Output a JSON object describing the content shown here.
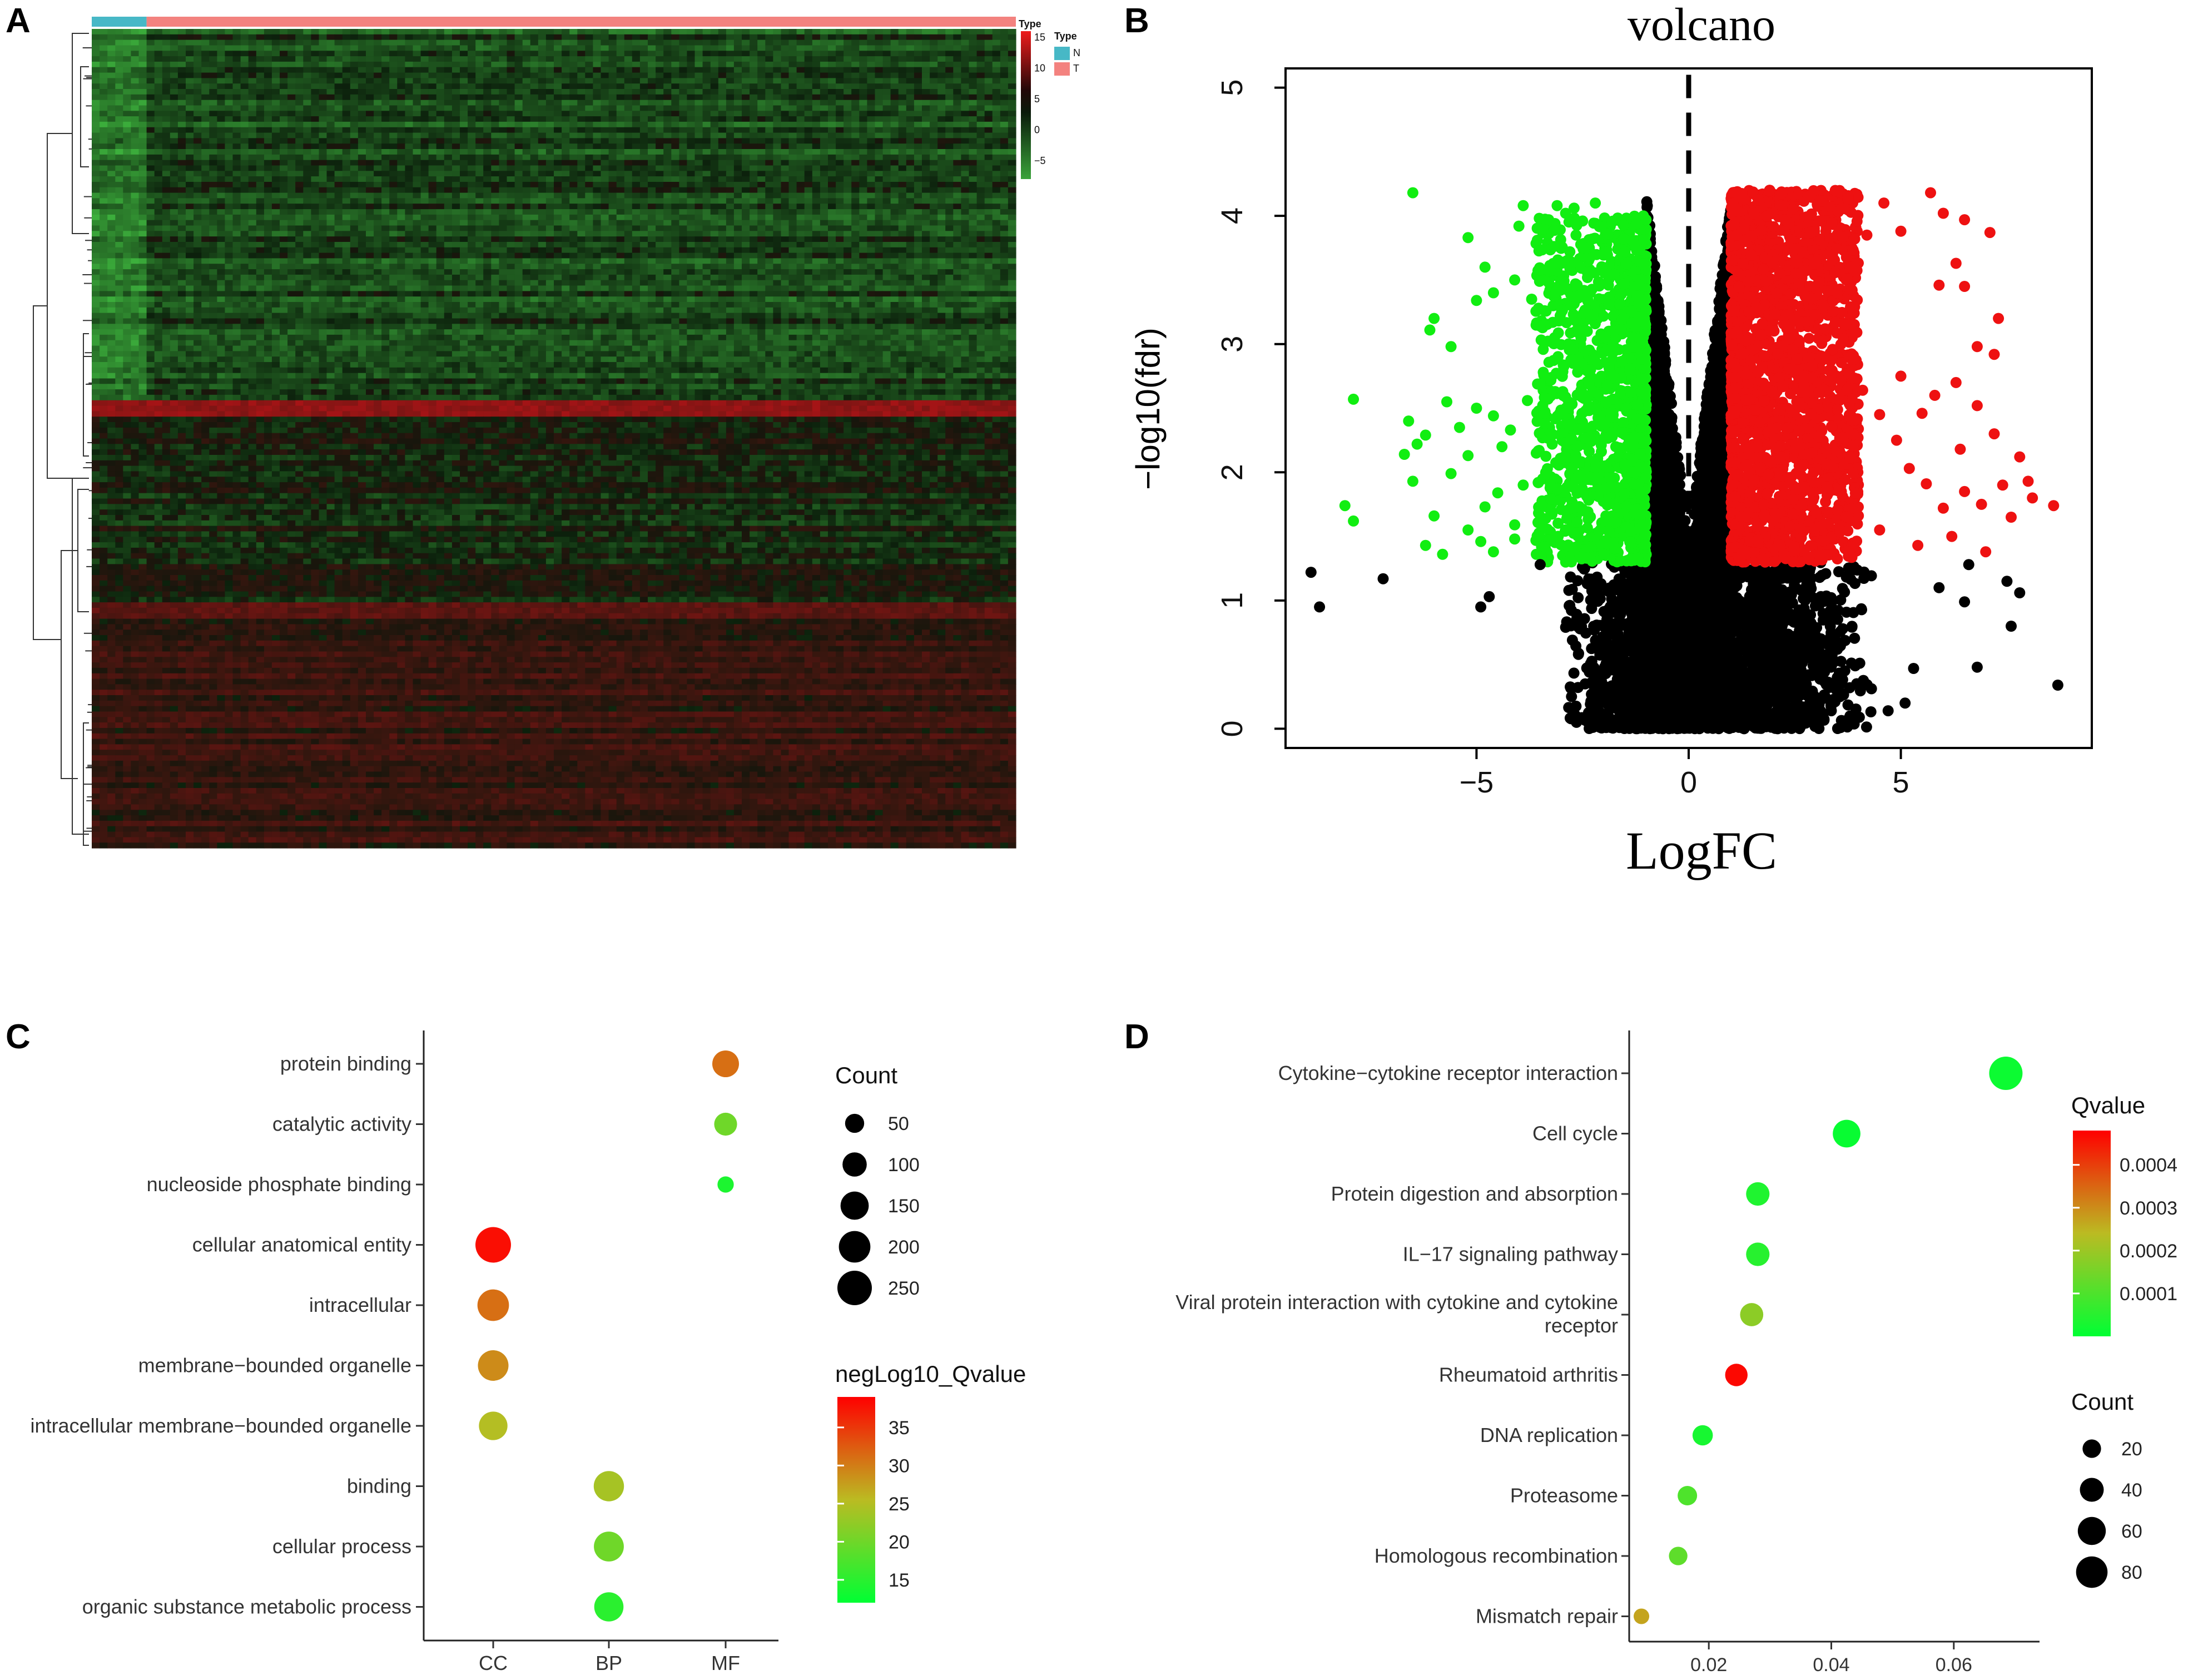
{
  "panels": {
    "a": "A",
    "b": "B",
    "c": "C",
    "d": "D"
  },
  "colors": {
    "up": "#ee1111",
    "down": "#11ee11",
    "nonsig": "#000000",
    "type_n": "#47b8c6",
    "type_t": "#f3827f",
    "low": "#00ff33",
    "high": "#ff0000"
  },
  "chart_data": [
    {
      "id": "heatmap",
      "type": "heatmap",
      "title": "",
      "annotation_title": "Type",
      "groups": [
        {
          "label": "N",
          "samples": 14
        },
        {
          "label": "T",
          "samples": 222
        }
      ],
      "color_legend": {
        "title": "Type",
        "ticks": [
          "15",
          "10",
          "5",
          "0",
          "−5"
        ],
        "range": [
          -8,
          16
        ]
      }
    },
    {
      "id": "volcano",
      "type": "scatter",
      "title": "volcano",
      "xlabel": "LogFC",
      "ylabel": "−log10(fdr)",
      "xlim": [
        -9.5,
        9.5
      ],
      "ylim": [
        -0.15,
        5.15
      ],
      "xticks": [
        "−5",
        "0",
        "5"
      ],
      "yticks": [
        "0",
        "1",
        "2",
        "3",
        "4",
        "5"
      ],
      "fc_cutoff": 1,
      "fdr_line_y": 1.3,
      "cutoff_line_x": 0,
      "series": [
        {
          "name": "down",
          "color": "#11ee11",
          "points": [
            [
              -6.5,
              4.18
            ],
            [
              -5.2,
              3.83
            ],
            [
              -4.8,
              3.6
            ],
            [
              -4.0,
              3.92
            ],
            [
              -3.9,
              4.08
            ],
            [
              -3.3,
              3.97
            ],
            [
              -3.1,
              4.08
            ],
            [
              -2.9,
              4.02
            ],
            [
              -2.7,
              4.06
            ],
            [
              -2.5,
              3.96
            ],
            [
              -2.2,
              4.1
            ],
            [
              -1.9,
              3.86
            ],
            [
              -1.5,
              3.72
            ],
            [
              -6.0,
              3.2
            ],
            [
              -6.1,
              3.11
            ],
            [
              -5.6,
              2.98
            ],
            [
              -5.0,
              3.34
            ],
            [
              -4.6,
              3.4
            ],
            [
              -4.1,
              3.5
            ],
            [
              -3.7,
              3.35
            ],
            [
              -3.5,
              3.14
            ],
            [
              -3.3,
              3.48
            ],
            [
              -3.0,
              3.63
            ],
            [
              -2.8,
              3.72
            ],
            [
              -7.9,
              2.57
            ],
            [
              -6.6,
              2.4
            ],
            [
              -6.2,
              2.29
            ],
            [
              -6.4,
              2.22
            ],
            [
              -6.7,
              2.14
            ],
            [
              -5.7,
              2.55
            ],
            [
              -5.4,
              2.35
            ],
            [
              -5.2,
              2.13
            ],
            [
              -5.0,
              2.5
            ],
            [
              -4.6,
              2.44
            ],
            [
              -4.4,
              2.2
            ],
            [
              -4.2,
              2.33
            ],
            [
              -3.8,
              2.56
            ],
            [
              -3.5,
              2.69
            ],
            [
              -8.1,
              1.74
            ],
            [
              -7.9,
              1.62
            ],
            [
              -6.5,
              1.93
            ],
            [
              -6.0,
              1.66
            ],
            [
              -5.6,
              1.99
            ],
            [
              -5.2,
              1.55
            ],
            [
              -4.8,
              1.73
            ],
            [
              -4.5,
              1.84
            ],
            [
              -4.1,
              1.59
            ],
            [
              -3.9,
              1.9
            ],
            [
              -6.2,
              1.43
            ],
            [
              -5.8,
              1.36
            ],
            [
              -4.9,
              1.46
            ],
            [
              -4.6,
              1.38
            ],
            [
              -4.1,
              1.48
            ],
            [
              -3.4,
              1.42
            ],
            [
              -2.9,
              1.3
            ],
            [
              -2.4,
              1.33
            ],
            [
              -2.0,
              1.36
            ],
            [
              -1.6,
              1.31
            ],
            [
              -1.2,
              1.33
            ]
          ],
          "cloud": {
            "x": [
              -3.6,
              -1.0
            ],
            "y": [
              1.3,
              4.0
            ],
            "n": 1200
          }
        },
        {
          "name": "up",
          "color": "#ee1111",
          "points": [
            [
              5.7,
              4.18
            ],
            [
              6.5,
              3.97
            ],
            [
              7.1,
              3.87
            ],
            [
              6.0,
              4.02
            ],
            [
              5.0,
              3.88
            ],
            [
              4.6,
              4.1
            ],
            [
              6.3,
              3.63
            ],
            [
              5.9,
              3.46
            ],
            [
              6.5,
              3.45
            ],
            [
              7.3,
              3.2
            ],
            [
              6.8,
              2.98
            ],
            [
              7.2,
              2.92
            ],
            [
              6.3,
              2.7
            ],
            [
              5.8,
              2.6
            ],
            [
              6.8,
              2.52
            ],
            [
              7.2,
              2.3
            ],
            [
              7.8,
              2.12
            ],
            [
              7.4,
              1.9
            ],
            [
              6.9,
              1.75
            ],
            [
              6.5,
              1.85
            ],
            [
              8.6,
              1.74
            ],
            [
              8.1,
              1.8
            ],
            [
              8.0,
              1.93
            ],
            [
              7.6,
              1.65
            ],
            [
              6.0,
              1.72
            ],
            [
              5.6,
              1.91
            ],
            [
              5.2,
              2.03
            ],
            [
              4.9,
              2.25
            ],
            [
              4.5,
              2.45
            ],
            [
              4.1,
              2.64
            ],
            [
              3.9,
              2.88
            ],
            [
              3.7,
              3.15
            ],
            [
              3.5,
              3.4
            ],
            [
              3.8,
              3.6
            ],
            [
              4.2,
              3.85
            ],
            [
              4.5,
              1.55
            ],
            [
              5.4,
              1.43
            ],
            [
              6.2,
              1.5
            ],
            [
              7.0,
              1.38
            ],
            [
              5.5,
              2.46
            ],
            [
              6.4,
              2.18
            ],
            [
              5.0,
              2.75
            ]
          ],
          "cloud": {
            "x": [
              1.0,
              4.0
            ],
            "y": [
              1.3,
              4.2
            ],
            "n": 2200
          }
        },
        {
          "name": "nonsig",
          "color": "#000000",
          "points": [
            [
              -8.9,
              1.22
            ],
            [
              -8.7,
              0.95
            ],
            [
              -7.2,
              1.17
            ],
            [
              -4.9,
              0.95
            ],
            [
              -4.7,
              1.03
            ],
            [
              -3.5,
              1.28
            ],
            [
              8.7,
              0.34
            ],
            [
              7.6,
              0.8
            ],
            [
              7.8,
              1.06
            ],
            [
              6.8,
              0.48
            ],
            [
              6.5,
              0.99
            ],
            [
              5.9,
              1.1
            ],
            [
              5.3,
              0.47
            ],
            [
              5.1,
              0.2
            ],
            [
              4.7,
              0.14
            ],
            [
              6.6,
              1.28
            ],
            [
              7.5,
              1.15
            ]
          ],
          "cloud": {
            "x": [
              -3.0,
              4.5
            ],
            "y": [
              0.0,
              1.3
            ],
            "n": 2600
          },
          "center": {
            "x": [
              -1.0,
              1.0
            ],
            "y": [
              0.0,
              4.15
            ],
            "n": 3000
          }
        }
      ]
    },
    {
      "id": "go",
      "type": "scatter",
      "title": "",
      "xlabel": "",
      "ylabel": "",
      "categories_x": [
        "CC",
        "BP",
        "MF"
      ],
      "categories_y": [
        "protein binding",
        "catalytic activity",
        "nucleoside phosphate binding",
        "cellular anatomical entity",
        "intracellular",
        "membrane−bounded organelle",
        "intracellular membrane−bounded organelle",
        "binding",
        "cellular process",
        "organic substance metabolic process"
      ],
      "points": [
        {
          "term": "protein binding",
          "category": "MF",
          "count": 130,
          "neglog10_q": 31
        },
        {
          "term": "catalytic activity",
          "category": "MF",
          "count": 85,
          "neglog10_q": 20
        },
        {
          "term": "nucleoside phosphate binding",
          "category": "MF",
          "count": 30,
          "neglog10_q": 14
        },
        {
          "term": "cellular anatomical entity",
          "category": "CC",
          "count": 270,
          "neglog10_q": 38
        },
        {
          "term": "intracellular",
          "category": "CC",
          "count": 200,
          "neglog10_q": 31
        },
        {
          "term": "membrane−bounded organelle",
          "category": "CC",
          "count": 185,
          "neglog10_q": 29
        },
        {
          "term": "intracellular membrane−bounded organelle",
          "category": "CC",
          "count": 155,
          "neglog10_q": 25
        },
        {
          "term": "binding",
          "category": "BP",
          "count": 180,
          "neglog10_q": 24
        },
        {
          "term": "cellular process",
          "category": "BP",
          "count": 175,
          "neglog10_q": 20
        },
        {
          "term": "organic substance metabolic process",
          "category": "BP",
          "count": 165,
          "neglog10_q": 15
        }
      ],
      "size_legend": {
        "title": "Count",
        "values": [
          50,
          100,
          150,
          200,
          250
        ]
      },
      "color_legend": {
        "title": "negLog10_Qvalue",
        "ticks": [
          35,
          30,
          25,
          20,
          15
        ],
        "range": [
          12,
          39
        ]
      }
    },
    {
      "id": "kegg",
      "type": "scatter",
      "title": "",
      "xlabel": "",
      "ylabel": "",
      "xlim": [
        0.007,
        0.074
      ],
      "xticks": [
        "0.02",
        "0.04",
        "0.06"
      ],
      "categories_y": [
        "Cytokine−cytokine receptor interaction",
        "Cell cycle",
        "Protein digestion and absorption",
        "IL−17 signaling pathway",
        "Viral protein interaction with cytokine and cytokine receptor",
        "Rheumatoid arthritis",
        "DNA replication",
        "Proteasome",
        "Homologous recombination",
        "Mismatch repair"
      ],
      "y_label_lines": [
        [
          "Cytokine−cytokine receptor interaction"
        ],
        [
          "Cell cycle"
        ],
        [
          "Protein digestion and absorption"
        ],
        [
          "IL−17 signaling pathway"
        ],
        [
          "Viral protein interaction with cytokine and cytokine",
          "receptor"
        ],
        [
          "Rheumatoid arthritis"
        ],
        [
          "DNA replication"
        ],
        [
          "Proteasome"
        ],
        [
          "Homologous recombination"
        ],
        [
          "Mismatch repair"
        ]
      ],
      "points": [
        {
          "pathway": "Cytokine−cytokine receptor interaction",
          "gene_ratio": 0.0685,
          "count": 92,
          "qvalue": 1.5e-05
        },
        {
          "pathway": "Cell cycle",
          "gene_ratio": 0.0425,
          "count": 58,
          "qvalue": 1e-05
        },
        {
          "pathway": "Protein digestion and absorption",
          "gene_ratio": 0.028,
          "count": 38,
          "qvalue": 4e-05
        },
        {
          "pathway": "IL−17 signaling pathway",
          "gene_ratio": 0.028,
          "count": 38,
          "qvalue": 5e-05
        },
        {
          "pathway": "Viral protein interaction with cytokine and cytokine receptor",
          "gene_ratio": 0.027,
          "count": 37,
          "qvalue": 0.00018
        },
        {
          "pathway": "Rheumatoid arthritis",
          "gene_ratio": 0.0245,
          "count": 34,
          "qvalue": 0.00047
        },
        {
          "pathway": "DNA replication",
          "gene_ratio": 0.019,
          "count": 26,
          "qvalue": 3e-05
        },
        {
          "pathway": "Proteasome",
          "gene_ratio": 0.0165,
          "count": 23,
          "qvalue": 0.0001
        },
        {
          "pathway": "Homologous recombination",
          "gene_ratio": 0.015,
          "count": 20,
          "qvalue": 0.00012
        },
        {
          "pathway": "Mismatch repair",
          "gene_ratio": 0.009,
          "count": 12,
          "qvalue": 0.00027
        }
      ],
      "size_legend": {
        "title": "Count",
        "values": [
          20,
          40,
          60,
          80
        ]
      },
      "color_legend": {
        "title": "Qvalue",
        "ticks": [
          "0.0004",
          "0.0003",
          "0.0002",
          "0.0001"
        ],
        "range": [
          0.0,
          0.00048
        ]
      }
    }
  ]
}
